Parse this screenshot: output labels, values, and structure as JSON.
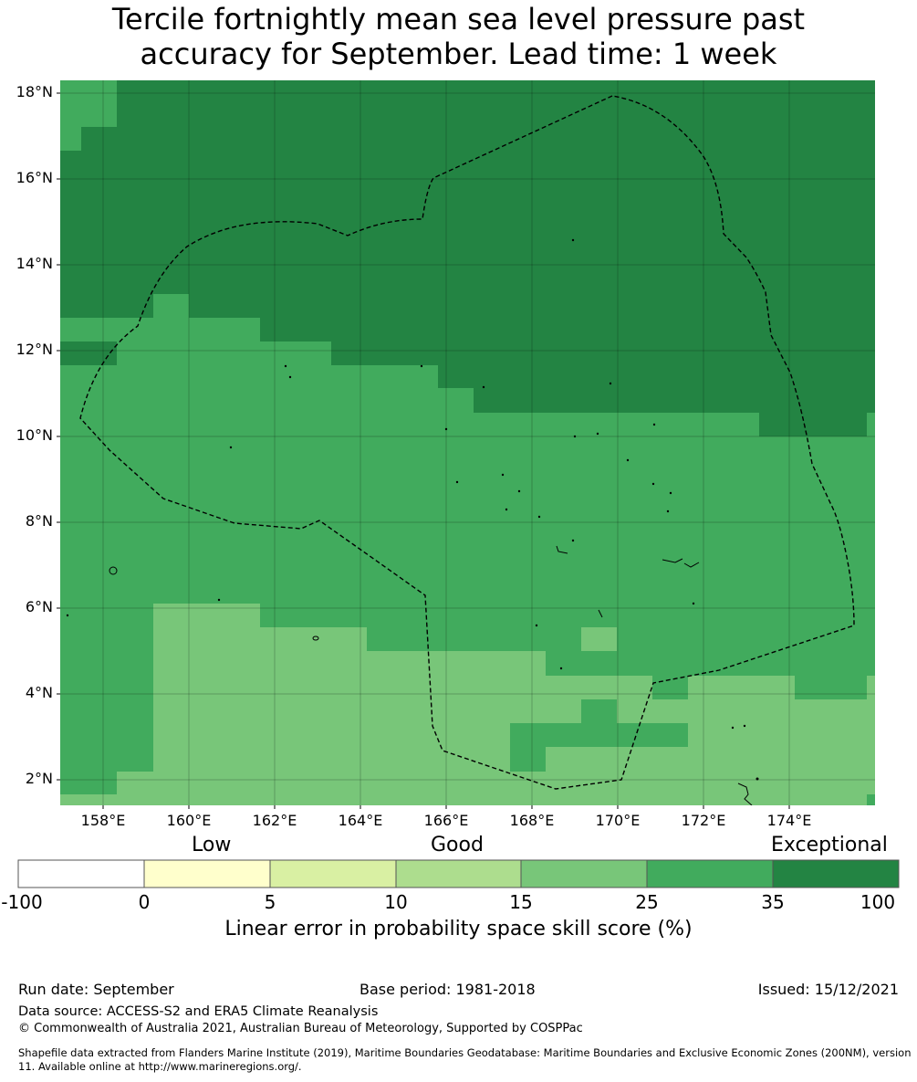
{
  "title": {
    "line1": "Tercile fortnightly mean sea level pressure past",
    "line2": "accuracy for September. Lead time: 1 week"
  },
  "axes": {
    "lat_labels": [
      "18°N",
      "16°N",
      "14°N",
      "12°N",
      "10°N",
      "8°N",
      "6°N",
      "4°N",
      "2°N"
    ],
    "lon_labels": [
      "158°E",
      "160°E",
      "162°E",
      "164°E",
      "166°E",
      "168°E",
      "170°E",
      "172°E",
      "174°E"
    ]
  },
  "colors": {
    "exceptional": "#238443",
    "high": "#41ab5d",
    "mid": "#78c679",
    "border_line": "#000000"
  },
  "colorbar": {
    "categories": [
      "Low",
      "Good",
      "Exceptional"
    ],
    "ticks": [
      "-100",
      "0",
      "5",
      "10",
      "15",
      "25",
      "35",
      "100"
    ],
    "bins": [
      {
        "range": "-100 to 0",
        "color": "#ffffff"
      },
      {
        "range": "0 to 5",
        "color": "#ffffcc"
      },
      {
        "range": "5 to 10",
        "color": "#d9f0a3"
      },
      {
        "range": "10 to 15",
        "color": "#addd8e"
      },
      {
        "range": "15 to 25",
        "color": "#78c679"
      },
      {
        "range": "25 to 35",
        "color": "#41ab5d"
      },
      {
        "range": "35 to 100",
        "color": "#238443"
      }
    ],
    "label": "Linear error in probability space skill score (%)"
  },
  "footer": {
    "run_date": "Run date: September",
    "base_period": "Base period: 1981-2018",
    "issued": "Issued: 15/12/2021",
    "data_source": "Data source: ACCESS-S2 and ERA5 Climate Reanalysis",
    "copyright": "© Commonwealth of Australia 2021, Australian Bureau of Meteorology, Supported by COSPPac",
    "shapefile": "Shapefile data extracted from Flanders Marine Institute (2019), Maritime Boundaries Geodatabase: Maritime Boundaries and Exclusive Economic Zones (200NM), version 11. Available online at http://www.marineregions.org/."
  }
}
